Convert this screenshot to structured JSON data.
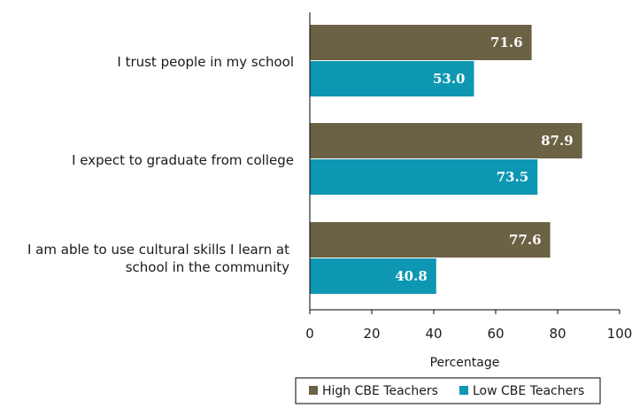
{
  "chart_data": {
    "type": "bar",
    "orientation": "horizontal",
    "categories": [
      [
        "I trust people in my school"
      ],
      [
        "I expect to graduate from college"
      ],
      [
        "I am able to use cultural skills I learn at",
        "school in the community"
      ]
    ],
    "series": [
      {
        "name": "High CBE Teachers",
        "values": [
          71.6,
          87.9,
          77.6
        ],
        "color": "#6b6245"
      },
      {
        "name": "Low CBE Teachers",
        "values": [
          53.0,
          73.5,
          40.8
        ],
        "color": "#0e97b2"
      }
    ],
    "value_labels": [
      [
        "71.6",
        "87.9",
        "77.6"
      ],
      [
        "53.0",
        "73.5",
        "40.8"
      ]
    ],
    "xlabel": "Percentage",
    "xlim": [
      0,
      100
    ],
    "xticks": [
      "0",
      "20",
      "40",
      "60",
      "80",
      "100"
    ],
    "grid": false,
    "legend_position": "bottom"
  }
}
